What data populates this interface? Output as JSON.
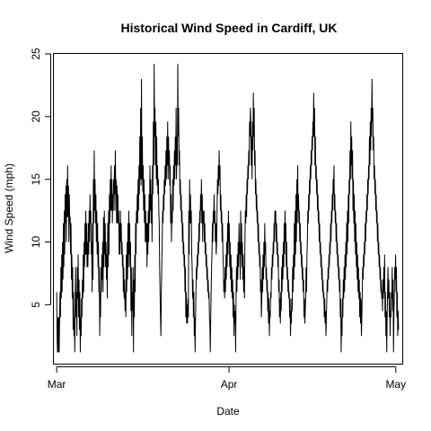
{
  "chart_data": {
    "type": "line",
    "title": "Historical Wind Speed in Cardiff, UK",
    "xlabel": "Date",
    "ylabel": "Wind Speed (mph)",
    "x_ticks": [
      {
        "date": "2014-03-01",
        "label": "Mar"
      },
      {
        "date": "2014-04-01",
        "label": "Apr"
      },
      {
        "date": "2014-05-01",
        "label": "May"
      }
    ],
    "y_ticks": [
      5,
      10,
      15,
      20,
      25
    ],
    "xlim": [
      "2014-02-28T12:00",
      "2014-05-02T04:00"
    ],
    "ylim": [
      0.3,
      25
    ],
    "grid": false,
    "legend": "none",
    "sampling_interval_hours": 1,
    "series": [
      {
        "values": [
          6.0,
          2.5,
          1.2,
          4.0,
          1.2,
          4.0,
          1.2,
          4.0,
          6.0,
          4.0,
          8.0,
          5.5,
          9.0,
          6.0,
          10.0,
          7.0,
          11.5,
          8.0,
          12.5,
          9.0,
          13.8,
          11.5,
          14.5,
          10.0,
          15.0,
          12.0,
          16.1,
          12.0,
          14.5,
          10.0,
          13.8,
          11.5,
          12.0,
          9.0,
          11.5,
          7.0,
          9.0,
          5.5,
          8.0,
          3.0,
          6.0,
          2.5,
          4.0,
          1.2,
          5.5,
          8.0,
          4.0,
          6.0,
          2.5,
          8.0,
          5.5,
          9.0,
          4.0,
          7.0,
          3.0,
          6.0,
          1.2,
          4.0,
          2.5,
          5.5,
          4.0,
          7.0,
          5.5,
          9.0,
          6.0,
          10.0,
          8.0,
          11.5,
          9.0,
          12.5,
          9.0,
          11.5,
          8.0,
          10.0,
          8.0,
          11.5,
          9.0,
          12.5,
          10.0,
          13.8,
          11.5,
          12.5,
          9.0,
          10.0,
          6.0,
          11.5,
          7.0,
          15.0,
          11.5,
          17.3,
          12.5,
          15.0,
          11.5,
          13.8,
          10.0,
          12.5,
          9.0,
          11.5,
          8.0,
          10.0,
          6.0,
          8.0,
          2.5,
          6.0,
          4.0,
          8.0,
          6.0,
          9.0,
          7.0,
          10.0,
          6.0,
          12.0,
          8.0,
          12.5,
          9.0,
          11.5,
          8.0,
          10.0,
          7.0,
          9.0,
          5.5,
          11.5,
          8.0,
          12.5,
          9.0,
          13.8,
          11.5,
          15.0,
          12.5,
          16.1,
          12.5,
          15.0,
          11.5,
          13.8,
          12.5,
          15.0,
          13.8,
          16.1,
          12.5,
          17.3,
          13.8,
          15.0,
          11.5,
          14.5,
          11.5,
          13.8,
          11.5,
          12.5,
          9.0,
          11.5,
          9.0,
          12.5,
          10.0,
          11.5,
          9.0,
          10.0,
          8.0,
          9.0,
          6.0,
          8.0,
          5.5,
          7.0,
          4.5,
          6.0,
          4.0,
          9.0,
          6.0,
          10.0,
          7.0,
          11.5,
          8.0,
          12.5,
          9.0,
          11.5,
          8.0,
          10.0,
          4.5,
          8.0,
          2.5,
          6.0,
          4.5,
          8.0,
          1.2,
          7.0,
          4.0,
          9.0,
          6.0,
          11.5,
          9.0,
          12.5,
          11.5,
          13.8,
          11.5,
          15.0,
          12.5,
          16.1,
          13.8,
          18.4,
          15.0,
          20.7,
          14.5,
          23.0,
          15.0,
          18.4,
          14.0,
          16.1,
          12.5,
          15.0,
          11.5,
          13.8,
          10.0,
          12.5,
          10.0,
          11.5,
          8.0,
          11.5,
          9.0,
          12.5,
          10.0,
          13.8,
          11.5,
          16.1,
          12.5,
          15.0,
          11.5,
          13.8,
          10.0,
          16.1,
          13.8,
          19.6,
          16.1,
          24.2,
          18.4,
          20.7,
          16.1,
          19.6,
          15.0,
          18.4,
          14.5,
          16.1,
          13.8,
          15.0,
          12.5,
          11.5,
          8.0,
          6.0,
          4.0,
          2.5,
          6.0,
          8.0,
          10.0,
          12.5,
          11.5,
          13.8,
          12.5,
          15.0,
          13.8,
          16.1,
          14.5,
          17.3,
          15.0,
          18.4,
          16.1,
          19.6,
          15.0,
          18.4,
          16.1,
          17.3,
          14.5,
          16.1,
          11.5,
          13.8,
          10.0,
          12.5,
          11.5,
          15.0,
          12.5,
          16.1,
          14.5,
          17.3,
          15.0,
          18.4,
          16.1,
          20.7,
          15.0,
          18.4,
          16.1,
          24.2,
          18.4,
          20.7,
          16.1,
          17.3,
          13.8,
          15.0,
          12.5,
          13.8,
          11.5,
          12.5,
          10.0,
          11.5,
          9.0,
          10.0,
          8.0,
          9.0,
          6.0,
          8.0,
          4.0,
          6.0,
          3.5,
          5.0,
          3.5,
          5.5,
          4.0,
          12.5,
          9.0,
          15.0,
          11.5,
          13.8,
          11.5,
          12.5,
          9.0,
          8.0,
          5.5,
          7.0,
          4.0,
          6.0,
          2.5,
          4.0,
          1.2,
          4.0,
          6.0,
          8.0,
          7.0,
          9.0,
          8.0,
          10.0,
          9.0,
          11.5,
          10.0,
          12.5,
          11.5,
          13.8,
          12.5,
          15.0,
          11.5,
          13.8,
          10.0,
          12.5,
          11.5,
          12.5,
          10.0,
          11.5,
          9.0,
          10.0,
          8.0,
          9.0,
          7.0,
          8.0,
          6.0,
          7.0,
          5.5,
          6.0,
          4.0,
          3.5,
          1.2,
          4.0,
          6.0,
          8.0,
          9.0,
          11.5,
          10.0,
          12.5,
          11.5,
          13.8,
          11.5,
          12.5,
          10.0,
          11.5,
          9.0,
          10.0,
          12.5,
          15.0,
          13.8,
          16.1,
          14.5,
          17.3,
          15.0,
          16.1,
          12.5,
          13.8,
          11.5,
          12.5,
          10.0,
          11.5,
          9.0,
          8.0,
          6.0,
          7.0,
          5.5,
          8.0,
          6.0,
          9.0,
          7.0,
          10.0,
          8.0,
          11.5,
          9.0,
          12.5,
          10.0,
          11.5,
          8.0,
          10.0,
          7.0,
          9.0,
          6.0,
          8.0,
          5.5,
          7.0,
          4.0,
          6.0,
          2.5,
          5.0,
          3.5,
          4.5,
          1.2,
          5.5,
          8.0,
          6.0,
          9.0,
          7.0,
          10.0,
          8.0,
          11.5,
          9.0,
          10.0,
          7.0,
          12.5,
          9.0,
          11.5,
          8.0,
          10.0,
          7.0,
          9.0,
          6.0,
          8.0,
          5.5,
          10.0,
          12.5,
          11.5,
          13.8,
          12.0,
          15.0,
          13.8,
          16.1,
          15.0,
          17.3,
          16.1,
          19.6,
          18.4,
          20.7,
          19.6,
          16.1,
          18.4,
          15.0,
          19.6,
          17.3,
          21.9,
          18.4,
          20.7,
          16.1,
          17.3,
          13.8,
          15.0,
          12.5,
          13.8,
          11.5,
          12.5,
          10.0,
          11.5,
          9.0,
          10.0,
          8.0,
          9.0,
          6.0,
          7.0,
          4.0,
          5.5,
          8.0,
          6.0,
          9.0,
          7.0,
          10.0,
          8.0,
          11.5,
          9.0,
          10.0,
          7.0,
          8.0,
          6.0,
          7.0,
          4.5,
          6.0,
          3.5,
          5.5,
          2.5,
          4.5,
          4.0,
          6.0,
          5.5,
          8.0,
          7.0,
          9.0,
          8.0,
          10.0,
          9.0,
          11.5,
          10.0,
          12.5,
          11.5,
          12.5,
          10.0,
          11.5,
          9.0,
          10.0,
          8.0,
          9.0,
          6.0,
          7.0,
          4.0,
          5.5,
          3.5,
          6.0,
          4.5,
          8.0,
          6.0,
          9.0,
          7.0,
          10.0,
          8.0,
          11.5,
          9.0,
          12.5,
          10.0,
          11.5,
          8.0,
          10.0,
          7.0,
          8.0,
          6.0,
          7.0,
          5.5,
          6.0,
          4.0,
          5.5,
          2.5,
          4.5,
          3.5,
          5.5,
          4.5,
          8.0,
          6.0,
          9.0,
          7.0,
          11.5,
          8.0,
          12.5,
          9.0,
          13.8,
          10.0,
          15.0,
          11.5,
          16.1,
          12.5,
          13.8,
          11.5,
          12.5,
          10.0,
          11.5,
          9.0,
          10.0,
          8.0,
          9.0,
          7.0,
          8.0,
          6.0,
          7.0,
          4.0,
          5.5,
          3.5,
          4.5,
          5.5,
          8.0,
          6.0,
          9.0,
          10.0,
          12.5,
          11.5,
          13.8,
          12.5,
          15.0,
          13.8,
          16.1,
          15.0,
          17.3,
          16.1,
          18.4,
          17.3,
          19.6,
          18.4,
          21.9,
          18.4,
          20.7,
          16.1,
          18.4,
          15.0,
          16.1,
          13.8,
          15.0,
          12.5,
          13.8,
          11.5,
          12.5,
          10.0,
          11.5,
          9.0,
          10.0,
          8.0,
          9.0,
          7.0,
          8.0,
          6.0,
          7.0,
          5.5,
          6.0,
          4.0,
          5.5,
          3.5,
          4.5,
          2.5,
          4.0,
          5.5,
          7.0,
          6.0,
          8.0,
          7.0,
          9.0,
          8.0,
          10.0,
          9.0,
          11.5,
          10.0,
          12.5,
          11.5,
          13.8,
          12.5,
          15.0,
          13.8,
          16.1,
          12.5,
          13.8,
          11.5,
          12.5,
          10.0,
          11.5,
          9.0,
          10.0,
          8.0,
          9.0,
          7.0,
          8.0,
          6.0,
          7.0,
          4.0,
          5.5,
          1.2,
          4.0,
          2.5,
          5.5,
          4.0,
          7.0,
          5.5,
          8.0,
          6.0,
          9.0,
          7.0,
          10.0,
          8.0,
          11.5,
          9.0,
          12.5,
          10.0,
          13.8,
          11.5,
          15.0,
          13.8,
          17.3,
          15.0,
          19.6,
          16.1,
          18.4,
          15.0,
          17.3,
          12.5,
          15.0,
          11.5,
          13.8,
          10.0,
          12.5,
          9.0,
          11.5,
          8.0,
          10.0,
          7.0,
          9.0,
          6.0,
          8.0,
          5.5,
          7.0,
          4.0,
          6.0,
          3.5,
          5.5,
          2.5,
          4.0,
          6.0,
          8.0,
          7.0,
          9.0,
          8.0,
          10.0,
          9.0,
          11.5,
          10.0,
          12.5,
          11.5,
          13.8,
          12.5,
          15.0,
          13.8,
          16.1,
          15.0,
          18.4,
          16.1,
          19.6,
          17.3,
          20.7,
          18.4,
          23.0,
          19.6,
          20.7,
          17.3,
          18.4,
          15.0,
          16.1,
          13.8,
          15.0,
          12.5,
          13.8,
          11.5,
          12.5,
          10.0,
          11.5,
          9.0,
          10.0,
          8.0,
          9.0,
          7.0,
          8.0,
          6.0,
          7.0,
          5.5,
          6.0,
          4.5,
          7.0,
          5.5,
          8.0,
          6.0,
          9.0,
          4.0,
          6.0,
          2.5,
          4.5,
          1.2,
          4.0,
          6.0,
          8.0,
          5.5,
          7.0,
          4.0,
          6.0,
          2.5,
          4.5,
          4.0,
          6.0,
          5.5,
          8.0,
          4.5,
          7.0,
          1.2,
          4.0,
          6.0,
          8.0,
          7.0,
          9.0,
          6.0,
          8.0,
          4.0,
          6.0,
          2.5,
          4.5,
          3.0
        ]
      }
    ]
  }
}
